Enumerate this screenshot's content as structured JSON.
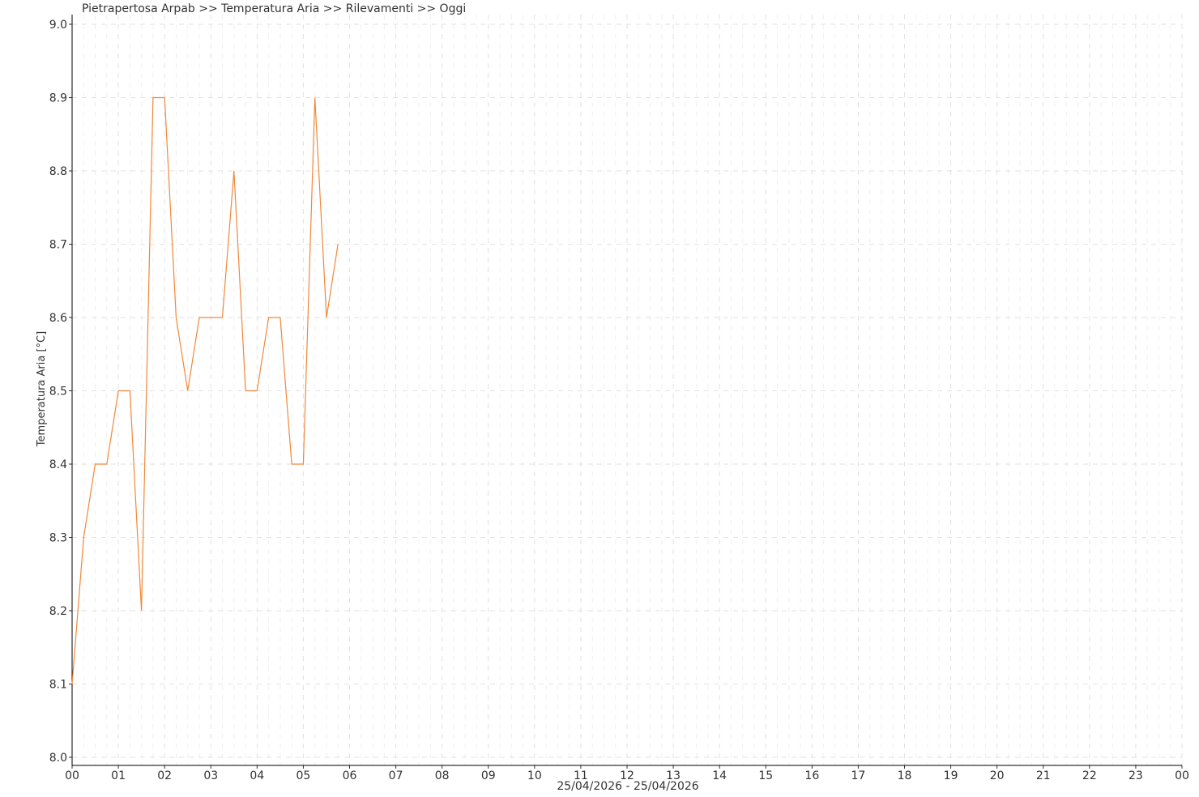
{
  "chart_data": {
    "type": "line",
    "title": "Pietrapertosa Arpab >> Temperatura Aria >> Rilevamenti >> Oggi",
    "xlabel": "25/04/2026 - 25/04/2026",
    "ylabel": "Temperatura Aria [°C]",
    "xlim_hours": [
      0,
      24
    ],
    "ylim": [
      8.0,
      9.0
    ],
    "x_tick_labels": [
      "00",
      "01",
      "02",
      "03",
      "04",
      "05",
      "06",
      "07",
      "08",
      "09",
      "10",
      "11",
      "12",
      "13",
      "14",
      "15",
      "16",
      "17",
      "18",
      "19",
      "20",
      "21",
      "22",
      "23",
      "00"
    ],
    "y_tick_labels": [
      "8.0",
      "8.1",
      "8.2",
      "8.3",
      "8.4",
      "8.5",
      "8.6",
      "8.7",
      "8.8",
      "8.9",
      "9.0"
    ],
    "grid": true,
    "series": [
      {
        "color": "#f0883a",
        "x": [
          "00:00",
          "00:15",
          "00:30",
          "00:45",
          "01:00",
          "01:15",
          "01:30",
          "01:45",
          "02:00",
          "02:15",
          "02:30",
          "02:45",
          "03:00",
          "03:15",
          "03:30",
          "03:45",
          "04:00",
          "04:15",
          "04:30",
          "04:45",
          "05:00",
          "05:15",
          "05:30",
          "05:45"
        ],
        "values": [
          8.1,
          8.3,
          8.4,
          8.4,
          8.5,
          8.5,
          8.2,
          8.9,
          8.9,
          8.6,
          8.5,
          8.6,
          8.6,
          8.6,
          8.8,
          8.5,
          8.5,
          8.6,
          8.6,
          8.4,
          8.4,
          8.9,
          8.6,
          8.7
        ]
      }
    ]
  }
}
